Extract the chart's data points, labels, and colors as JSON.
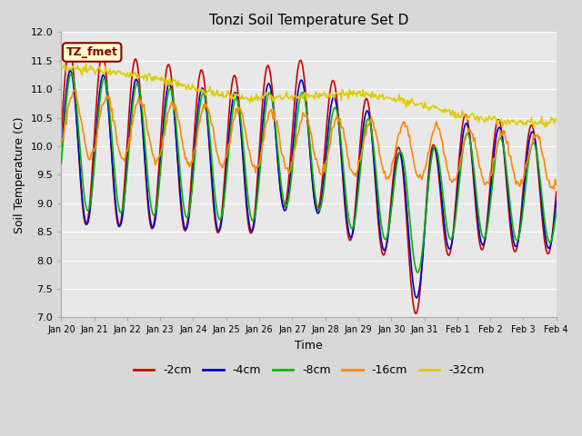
{
  "title": "Tonzi Soil Temperature Set D",
  "xlabel": "Time",
  "ylabel": "Soil Temperature (C)",
  "ylim": [
    7.0,
    12.0
  ],
  "yticks": [
    7.0,
    7.5,
    8.0,
    8.5,
    9.0,
    9.5,
    10.0,
    10.5,
    11.0,
    11.5,
    12.0
  ],
  "xtick_labels": [
    "Jan 20",
    "Jan 21",
    "Jan 22",
    "Jan 23",
    "Jan 24",
    "Jan 25",
    "Jan 26",
    "Jan 27",
    "Jan 28",
    "Jan 29",
    "Jan 30",
    "Jan 31",
    "Feb 1",
    "Feb 2",
    "Feb 3",
    "Feb 4"
  ],
  "series": {
    "-2cm": {
      "color": "#cc0000",
      "linewidth": 1.2
    },
    "-4cm": {
      "color": "#0000cc",
      "linewidth": 1.2
    },
    "-8cm": {
      "color": "#00bb00",
      "linewidth": 1.2
    },
    "-16cm": {
      "color": "#ff8800",
      "linewidth": 1.2
    },
    "-32cm": {
      "color": "#ddcc00",
      "linewidth": 1.2
    }
  },
  "annotation": {
    "text": "TZ_fmet",
    "fontsize": 9,
    "color": "#8b0000",
    "bbox_facecolor": "#ffffcc",
    "bbox_edgecolor": "#8b0000"
  },
  "fig_facecolor": "#d8d8d8",
  "plot_facecolor": "#e8e8e8",
  "grid_color": "#ffffff",
  "n_points": 480
}
